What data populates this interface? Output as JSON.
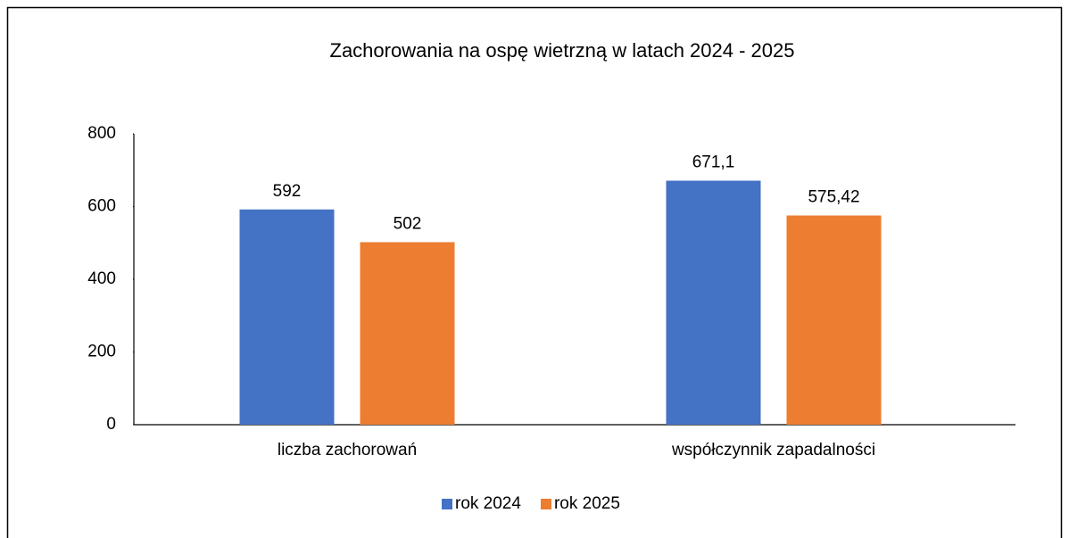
{
  "chart_data": {
    "type": "bar",
    "title": "Zachorowania na ospę wietrzną w latach 2024 - 2025",
    "categories": [
      "liczba zachorowań",
      "współczynnik zapadalności"
    ],
    "series": [
      {
        "name": "rok 2024",
        "color": "#4472c4",
        "values": [
          592,
          671.1
        ],
        "value_labels": [
          "592",
          "671,1"
        ]
      },
      {
        "name": "rok 2025",
        "color": "#ed7d31",
        "values": [
          502,
          575.42
        ],
        "value_labels": [
          "502",
          "575,42"
        ]
      }
    ],
    "ylim": [
      0,
      800
    ],
    "yticks": [
      0,
      200,
      400,
      600,
      800
    ],
    "grid": false,
    "legend": "bottom"
  }
}
